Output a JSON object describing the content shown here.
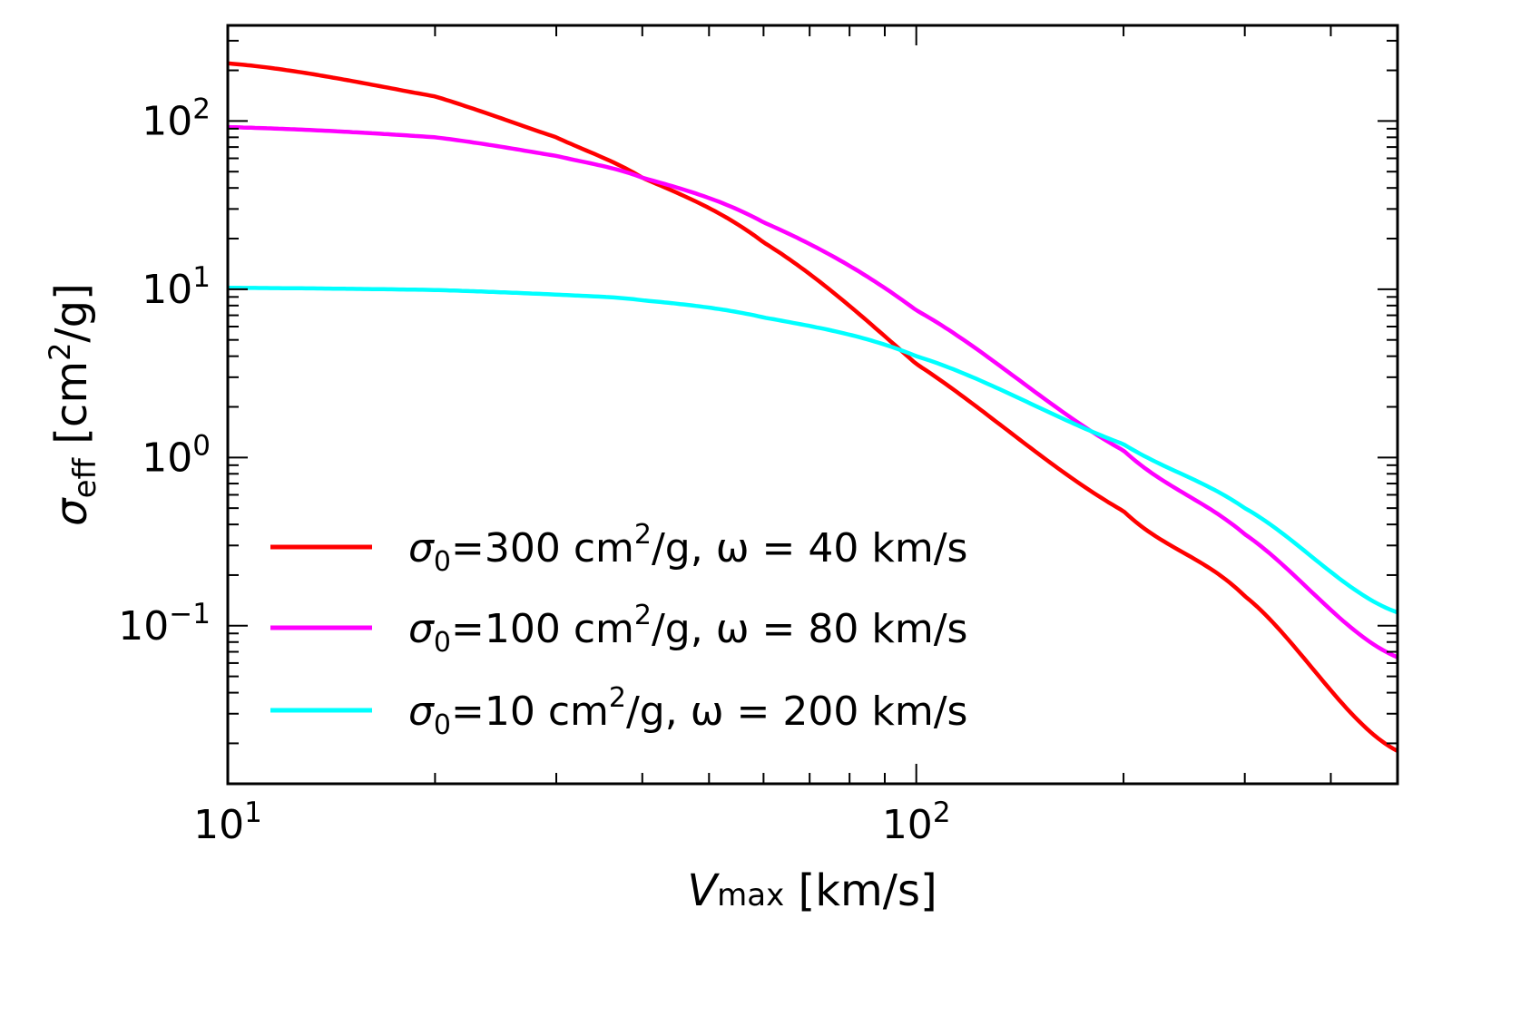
{
  "chart_data": {
    "type": "line",
    "title": "",
    "xlabel": "V_max [km/s]",
    "ylabel": "σ_eff [cm²/g]",
    "xscale": "log",
    "yscale": "log",
    "xlim": [
      10,
      500
    ],
    "ylim": [
      0.0115,
      370
    ],
    "grid": false,
    "legend_position": "lower left",
    "x_ticks": [
      {
        "base": "10",
        "exp": "1",
        "value": 10
      },
      {
        "base": "10",
        "exp": "2",
        "value": 100
      }
    ],
    "y_ticks": [
      {
        "base": "10",
        "exp": "2",
        "value": 100
      },
      {
        "base": "10",
        "exp": "1",
        "value": 10
      },
      {
        "base": "10",
        "exp": "0",
        "value": 1
      },
      {
        "base": "10",
        "exp": "−1",
        "value": 0.1
      }
    ],
    "series": [
      {
        "name": "σ0=300 cm²/g, ω = 40 km/s",
        "sigma0": 300,
        "omega": 40,
        "color": "#ff0000",
        "legend": {
          "prefix": "σ",
          "sub": "0",
          "mid": "=300 cm",
          "sup": "2",
          "rest": "/g, ω = 40 km/s"
        },
        "x": [
          10,
          20,
          30,
          40,
          60,
          100,
          200,
          300,
          500
        ],
        "y": [
          220,
          140,
          80,
          46,
          19,
          3.6,
          0.48,
          0.15,
          0.018
        ]
      },
      {
        "name": "σ0=100 cm²/g, ω = 80 km/s",
        "sigma0": 100,
        "omega": 80,
        "color": "#ff00ff",
        "legend": {
          "prefix": "σ",
          "sub": "0",
          "mid": "=100 cm",
          "sup": "2",
          "rest": "/g, ω = 80 km/s"
        },
        "x": [
          10,
          20,
          30,
          40,
          60,
          100,
          200,
          300,
          500
        ],
        "y": [
          92,
          80,
          62,
          46,
          25,
          7.5,
          1.1,
          0.35,
          0.065
        ]
      },
      {
        "name": "σ0=10 cm²/g, ω = 200 km/s",
        "sigma0": 10,
        "omega": 200,
        "color": "#00ffff",
        "legend": {
          "prefix": "σ",
          "sub": "0",
          "mid": "=10 cm",
          "sup": "2",
          "rest": "/g, ω = 200 km/s"
        },
        "x": [
          10,
          20,
          30,
          40,
          60,
          100,
          200,
          300,
          500
        ],
        "y": [
          10.2,
          9.9,
          9.3,
          8.6,
          6.8,
          4.0,
          1.2,
          0.5,
          0.12
        ]
      }
    ]
  },
  "axes": {
    "xlabel": {
      "main": "V",
      "sub": "max",
      "unit": " [km/s]"
    },
    "ylabel": {
      "main": "σ",
      "sub": "eff",
      "unit_open": " [cm",
      "sup": "2",
      "unit_close": "/g]"
    }
  }
}
